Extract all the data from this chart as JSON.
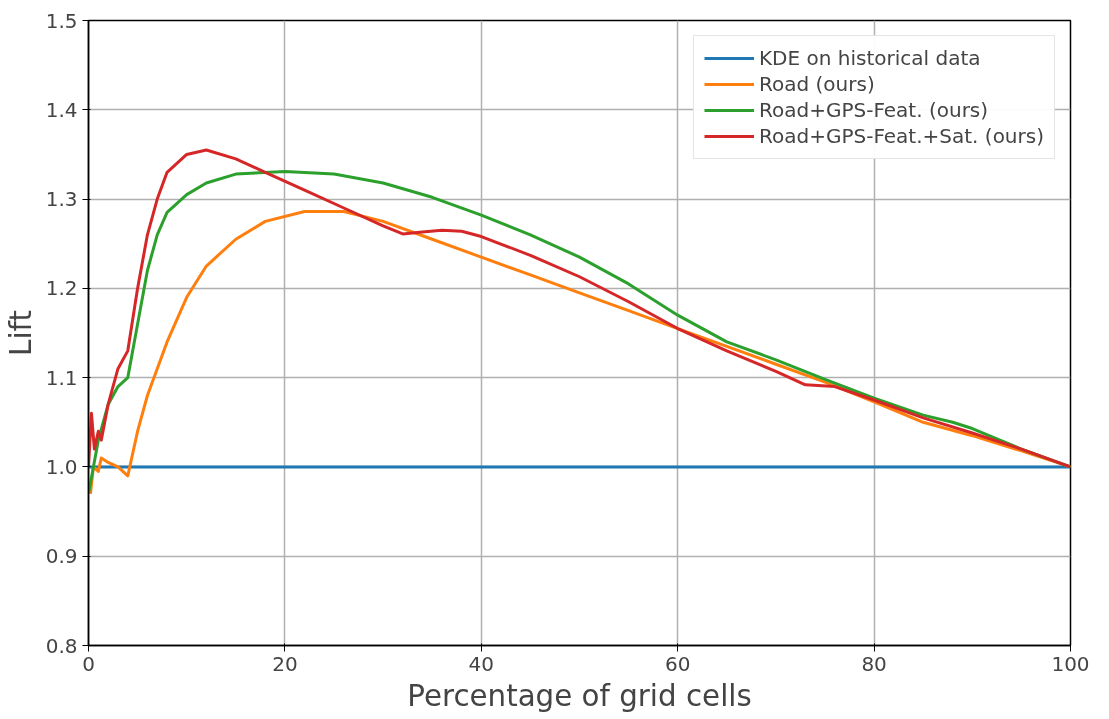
{
  "chart_data": {
    "type": "line",
    "xlabel": "Percentage of grid cells",
    "ylabel": "Lift",
    "xlim": [
      0,
      100
    ],
    "ylim": [
      0.8,
      1.5
    ],
    "xticks": [
      0,
      20,
      40,
      60,
      80,
      100
    ],
    "yticks": [
      0.8,
      0.9,
      {
        "value": 1.0,
        "label": "1.0"
      },
      1.1,
      1.2,
      1.3,
      1.4,
      1.5
    ],
    "grid": true,
    "legend": "top right",
    "line_style": "solid",
    "series": [
      {
        "name": "KDE on historical data",
        "color": "#1f77b4",
        "x": [
          0,
          100
        ],
        "values": [
          1.0,
          1.0
        ]
      },
      {
        "name": "Road (ours)",
        "color": "#ff7f0e",
        "x": [
          0.2,
          0.5,
          1,
          1.3,
          2,
          3,
          4,
          5,
          6,
          8,
          10,
          12,
          15,
          18,
          22,
          26,
          30,
          35,
          40,
          45,
          50,
          55,
          60,
          65,
          70,
          75,
          80,
          85,
          90,
          95,
          100
        ],
        "values": [
          0.97,
          1.0,
          0.995,
          1.01,
          1.005,
          1.0,
          0.99,
          1.04,
          1.08,
          1.14,
          1.19,
          1.225,
          1.255,
          1.275,
          1.286,
          1.286,
          1.275,
          1.255,
          1.235,
          1.215,
          1.195,
          1.175,
          1.155,
          1.135,
          1.115,
          1.095,
          1.073,
          1.05,
          1.035,
          1.018,
          1.0
        ]
      },
      {
        "name": "Road+GPS-Feat. (ours)",
        "color": "#2ca02c",
        "x": [
          0,
          0.5,
          1,
          2,
          3,
          4,
          5,
          6,
          7,
          8,
          10,
          12,
          15,
          20,
          25,
          30,
          35,
          40,
          45,
          50,
          55,
          60,
          65,
          70,
          75,
          80,
          85,
          88,
          90,
          95,
          100
        ],
        "values": [
          0.97,
          1.0,
          1.03,
          1.07,
          1.09,
          1.1,
          1.16,
          1.22,
          1.26,
          1.285,
          1.305,
          1.318,
          1.328,
          1.331,
          1.328,
          1.318,
          1.302,
          1.282,
          1.26,
          1.235,
          1.205,
          1.17,
          1.14,
          1.12,
          1.098,
          1.077,
          1.058,
          1.05,
          1.043,
          1.02,
          1.0
        ]
      },
      {
        "name": "Road+GPS-Feat.+Sat. (ours)",
        "color": "#d62728",
        "x": [
          0,
          0.3,
          0.6,
          1,
          1.3,
          2,
          3,
          4,
          5,
          6,
          7,
          8,
          10,
          12,
          15,
          18,
          22,
          26,
          30,
          32,
          34,
          36,
          38,
          40,
          45,
          50,
          55,
          60,
          65,
          70,
          73,
          76,
          80,
          85,
          90,
          95,
          100
        ],
        "values": [
          1.0,
          1.06,
          1.02,
          1.04,
          1.03,
          1.07,
          1.11,
          1.13,
          1.2,
          1.26,
          1.3,
          1.33,
          1.35,
          1.355,
          1.345,
          1.33,
          1.31,
          1.29,
          1.27,
          1.261,
          1.263,
          1.265,
          1.264,
          1.258,
          1.237,
          1.213,
          1.185,
          1.155,
          1.13,
          1.107,
          1.092,
          1.09,
          1.075,
          1.055,
          1.038,
          1.02,
          1.0
        ]
      }
    ]
  }
}
